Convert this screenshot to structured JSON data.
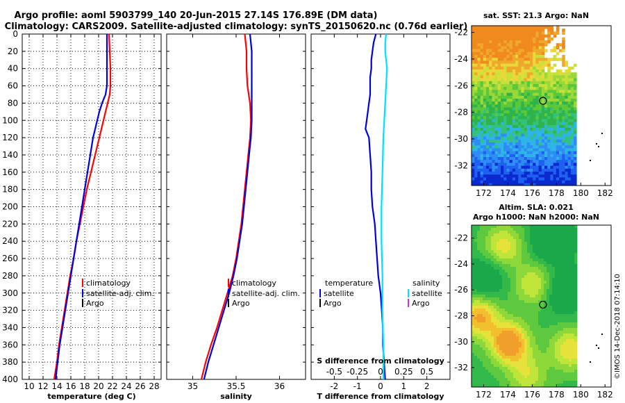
{
  "title": {
    "line1": "Argo profile: aoml 5903799_140 20-Jun-2015 27.14S 176.89E (DM data)",
    "line2": "Climatology: CARS2009. Satellite-adjusted climatology: synTS_20150620.nc (0.76d earlier)"
  },
  "colors": {
    "climatology": "#ff0000",
    "satellite": "#0000dd",
    "argo": "#000000",
    "satellite_s": "#00e0ff",
    "argo_s": "#cc33cc"
  },
  "watermark": "©IMOS 14-Dec-2018 07:14:10",
  "chart_data": [
    {
      "type": "line",
      "panel": "temperature",
      "xlabel": "temperature (deg C)",
      "ylabel": "",
      "xlim": [
        9,
        29
      ],
      "ylim": [
        400,
        0
      ],
      "xticks": [
        10,
        12,
        14,
        16,
        18,
        20,
        22,
        24,
        26,
        28
      ],
      "yticks": [
        0,
        20,
        40,
        60,
        80,
        100,
        120,
        140,
        160,
        180,
        200,
        220,
        240,
        260,
        280,
        300,
        320,
        340,
        360,
        380,
        400
      ],
      "legend": [
        "climatology",
        "satellite-adj. clim.",
        "Argo"
      ],
      "series": [
        {
          "name": "climatology",
          "color": "#ff0000",
          "depth": [
            0,
            20,
            40,
            60,
            70,
            80,
            90,
            100,
            110,
            120,
            140,
            160,
            180,
            200,
            220,
            240,
            260,
            280,
            300,
            320,
            340,
            360,
            380,
            400
          ],
          "values": [
            21.5,
            21.6,
            21.7,
            21.7,
            21.6,
            21.3,
            21.0,
            20.7,
            20.4,
            20.1,
            19.5,
            18.9,
            18.3,
            17.8,
            17.3,
            16.8,
            16.4,
            15.9,
            15.5,
            15.1,
            14.7,
            14.3,
            14.0,
            13.6
          ]
        },
        {
          "name": "satellite-adj. clim.",
          "color": "#0000dd",
          "depth": [
            0,
            20,
            40,
            60,
            70,
            80,
            90,
            100,
            110,
            120,
            140,
            160,
            180,
            200,
            220,
            240,
            260,
            280,
            300,
            320,
            340,
            360,
            380,
            400
          ],
          "values": [
            21.2,
            21.2,
            21.2,
            21.2,
            21.0,
            20.5,
            20.1,
            19.8,
            19.5,
            19.2,
            18.8,
            18.4,
            18.0,
            17.6,
            17.2,
            16.8,
            16.4,
            16.0,
            15.6,
            15.2,
            14.8,
            14.4,
            14.1,
            13.8
          ]
        }
      ]
    },
    {
      "type": "line",
      "panel": "salinity",
      "xlabel": "salinity",
      "xlim": [
        34.7,
        36.3
      ],
      "ylim": [
        400,
        0
      ],
      "xticks": [
        35,
        35.5,
        36
      ],
      "legend": [
        "climatology",
        "satellite-adj. clim.",
        "Argo"
      ],
      "series": [
        {
          "name": "climatology",
          "color": "#ff0000",
          "depth": [
            0,
            20,
            40,
            60,
            80,
            100,
            120,
            140,
            160,
            180,
            200,
            220,
            240,
            260,
            280,
            300,
            320,
            340,
            360,
            380,
            400
          ],
          "values": [
            35.6,
            35.62,
            35.62,
            35.63,
            35.66,
            35.67,
            35.66,
            35.64,
            35.62,
            35.6,
            35.58,
            35.56,
            35.53,
            35.5,
            35.46,
            35.4,
            35.34,
            35.28,
            35.21,
            35.15,
            35.1
          ]
        },
        {
          "name": "satellite-adj. clim.",
          "color": "#0000dd",
          "depth": [
            0,
            20,
            40,
            60,
            80,
            100,
            120,
            140,
            160,
            180,
            200,
            220,
            240,
            260,
            280,
            300,
            320,
            340,
            360,
            380,
            400
          ],
          "values": [
            35.66,
            35.68,
            35.68,
            35.68,
            35.68,
            35.68,
            35.67,
            35.65,
            35.63,
            35.61,
            35.59,
            35.57,
            35.54,
            35.51,
            35.47,
            35.42,
            35.36,
            35.3,
            35.24,
            35.18,
            35.13
          ]
        }
      ]
    },
    {
      "type": "line",
      "panel": "difference",
      "xlabel": "T difference from climatology",
      "xlabel_top": "S difference from climatology",
      "xlim": [
        -3,
        3
      ],
      "ylim": [
        400,
        0
      ],
      "xticks": [
        -2,
        -1,
        0,
        1,
        2
      ],
      "xticks_s": [
        -0.5,
        -0.25,
        0,
        0.25,
        0.5
      ],
      "legend_t_title": "temperature",
      "legend_s_title": "salinity",
      "legend_t": [
        "satellite",
        "Argo"
      ],
      "legend_s": [
        "satellite",
        "Argo"
      ],
      "series": [
        {
          "name": "temperature satellite",
          "color": "#0000dd",
          "depth": [
            0,
            10,
            20,
            30,
            40,
            50,
            60,
            70,
            80,
            90,
            100,
            110,
            120,
            140,
            160,
            180,
            200,
            220,
            240,
            260,
            280,
            300,
            320,
            340,
            360,
            380,
            400
          ],
          "values": [
            -0.2,
            -0.3,
            -0.35,
            -0.4,
            -0.4,
            -0.45,
            -0.45,
            -0.45,
            -0.5,
            -0.55,
            -0.6,
            -0.65,
            -0.5,
            -0.45,
            -0.4,
            -0.4,
            -0.35,
            -0.25,
            -0.2,
            -0.15,
            -0.1,
            0.0,
            0.05,
            0.1,
            0.1,
            0.15,
            0.2
          ]
        },
        {
          "name": "salinity satellite",
          "color": "#00e0ff",
          "depth": [
            0,
            10,
            20,
            30,
            40,
            60,
            80,
            100,
            120,
            160,
            200,
            240,
            280,
            320,
            360,
            400
          ],
          "values": [
            0.06,
            0.05,
            0.05,
            0.06,
            0.07,
            0.06,
            0.05,
            0.04,
            0.03,
            0.02,
            0.01,
            0.01,
            0.02,
            0.02,
            0.03,
            0.03
          ]
        }
      ]
    },
    {
      "type": "heatmap",
      "panel": "sst",
      "title": "sat. SST: 21.3 Argo: NaN",
      "xlim": [
        171,
        182.5
      ],
      "ylim": [
        -33.5,
        -21.5
      ],
      "xticks": [
        172,
        174,
        176,
        178,
        180,
        182
      ],
      "yticks": [
        -22,
        -24,
        -26,
        -28,
        -30,
        -32
      ],
      "marker": {
        "lon": 176.89,
        "lat": -27.14
      }
    },
    {
      "type": "heatmap",
      "panel": "sla",
      "title_line1": "Altim. SLA: 0.021",
      "title_line2": "Argo h1000: NaN h2000: NaN",
      "xlim": [
        171,
        182.5
      ],
      "ylim": [
        -33.5,
        -21
      ],
      "xticks": [
        172,
        174,
        176,
        178,
        180,
        182
      ],
      "yticks": [
        -22,
        -24,
        -26,
        -28,
        -30,
        -32
      ],
      "marker": {
        "lon": 176.89,
        "lat": -27.14
      }
    }
  ]
}
